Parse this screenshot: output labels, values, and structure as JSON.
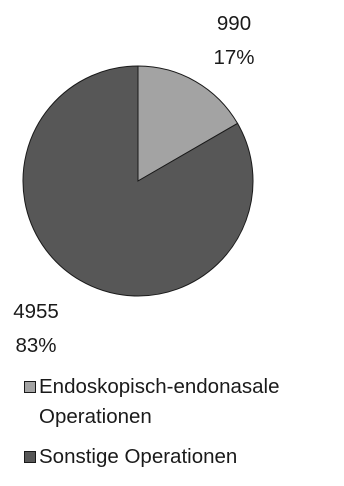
{
  "chart_data": {
    "type": "pie",
    "slices": [
      {
        "label": "Endoskopisch-endonasale Operationen",
        "value": 990,
        "percent": "17%",
        "color": "#a3a3a3"
      },
      {
        "label": "Sonstige Operationen",
        "value": 4955,
        "percent": "83%",
        "color": "#575757"
      }
    ],
    "legend_placement": "bottom"
  },
  "legend": {
    "items": [
      {
        "label": "Endoskopisch-endonasale Operationen",
        "color": "#a3a3a3"
      },
      {
        "label": "Sonstige Operationen",
        "color": "#575757"
      }
    ]
  }
}
